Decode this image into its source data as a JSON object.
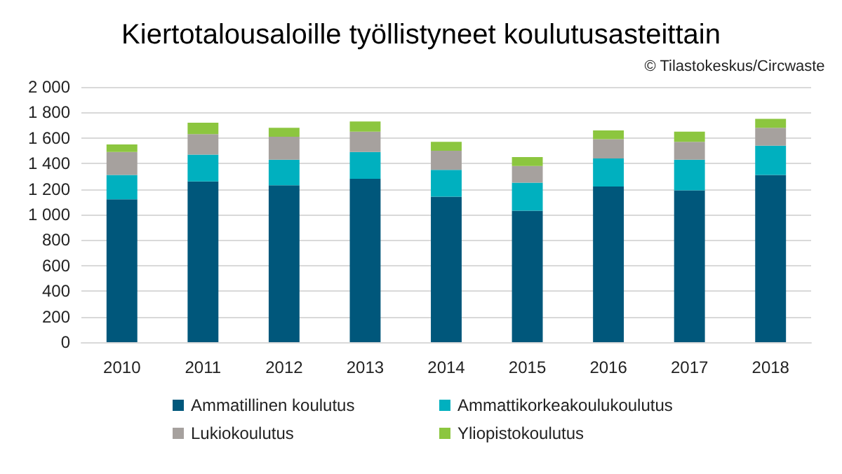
{
  "chart_data": {
    "type": "bar",
    "title": "Kiertotalousaloille työllistyneet koulutusasteittain",
    "annotations": [
      "© Tilastokeskus/Circwaste"
    ],
    "categories": [
      "2010",
      "2011",
      "2012",
      "2013",
      "2014",
      "2015",
      "2016",
      "2017",
      "2018"
    ],
    "stacked": true,
    "series": [
      {
        "name": "Ammatillinen koulutus",
        "color": "#00577b",
        "values": [
          1120,
          1260,
          1230,
          1280,
          1140,
          1030,
          1220,
          1190,
          1310
        ]
      },
      {
        "name": "Ammattikorkeakoulukoulutus",
        "color": "#00b0bf",
        "values": [
          190,
          210,
          200,
          210,
          210,
          220,
          220,
          240,
          230
        ]
      },
      {
        "name": "Lukiokoulutus",
        "color": "#a6a19e",
        "values": [
          180,
          160,
          180,
          160,
          150,
          130,
          150,
          140,
          140
        ]
      },
      {
        "name": "Yliopistokoulutus",
        "color": "#8cc63f",
        "values": [
          60,
          90,
          70,
          80,
          70,
          70,
          70,
          80,
          70
        ]
      }
    ],
    "ylim": [
      0,
      2000
    ],
    "yticks": [
      0,
      200,
      400,
      600,
      800,
      {
        "value": 1000,
        "label": "1 000"
      },
      {
        "value": 1200,
        "label": "1 200"
      },
      {
        "value": 1400,
        "label": "1 400"
      },
      {
        "value": 1600,
        "label": "1 600"
      },
      {
        "value": 1800,
        "label": "1 800"
      },
      {
        "value": 2000,
        "label": "2 000"
      }
    ],
    "grid": "y",
    "legend": "bottom"
  }
}
